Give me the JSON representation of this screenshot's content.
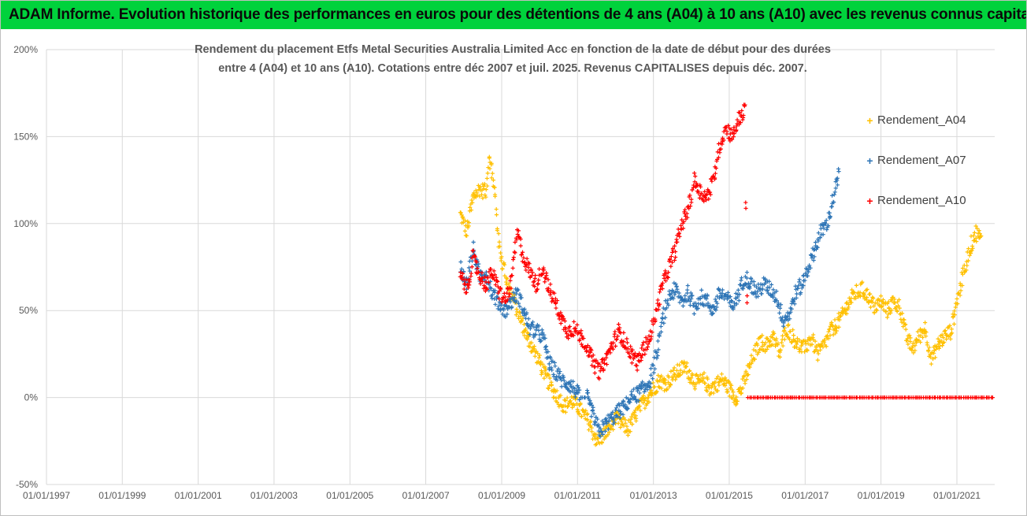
{
  "header": {
    "title": "ADAM Informe. Evolution historique des performances en euros pour des détentions de 4 ans (A04) à 10 ans (A10) avec les revenus connus capitalisés"
  },
  "chart_data": {
    "type": "scatter",
    "title_line1": "Rendement du placement Etfs Metal Securities Australia Limited Acc en fonction de la date de début pour des durées",
    "title_line2": "entre 4 (A04) et 10 ans (A10). Cotations entre déc 2007 et juil. 2025. Revenus CAPITALISES depuis déc. 2007.",
    "xlim": [
      "1997-01-01",
      "2021-12-31"
    ],
    "ylim": [
      -50,
      200
    ],
    "y_ticks": [
      -50,
      0,
      50,
      100,
      150,
      200
    ],
    "y_tick_labels": [
      "-50%",
      "0%",
      "50%",
      "100%",
      "150%",
      "200%"
    ],
    "x_ticks": [
      "1997-01-01",
      "1999-01-01",
      "2001-01-01",
      "2003-01-01",
      "2005-01-01",
      "2007-01-01",
      "2009-01-01",
      "2011-01-01",
      "2013-01-01",
      "2015-01-01",
      "2017-01-01",
      "2019-01-01",
      "2021-01-01"
    ],
    "x_tick_labels": [
      "01/01/1997",
      "01/01/1999",
      "01/01/2001",
      "01/01/2003",
      "01/01/2005",
      "01/01/2007",
      "01/01/2009",
      "01/01/2011",
      "01/01/2013",
      "01/01/2015",
      "01/01/2017",
      "01/01/2019",
      "01/01/2021"
    ],
    "grid": true,
    "legend_position": "right",
    "series": [
      {
        "name": "Rendement_A04",
        "color": "#ffc000",
        "points": [
          [
            "2007-12-01",
            105
          ],
          [
            "2008-02-01",
            95
          ],
          [
            "2008-04-01",
            115
          ],
          [
            "2008-06-01",
            120
          ],
          [
            "2008-08-01",
            118
          ],
          [
            "2008-09-01",
            140
          ],
          [
            "2008-10-01",
            128
          ],
          [
            "2008-11-01",
            115
          ],
          [
            "2008-12-01",
            90
          ],
          [
            "2009-01-01",
            80
          ],
          [
            "2009-03-01",
            65
          ],
          [
            "2009-05-01",
            55
          ],
          [
            "2009-07-01",
            45
          ],
          [
            "2009-09-01",
            35
          ],
          [
            "2009-11-01",
            28
          ],
          [
            "2010-01-01",
            20
          ],
          [
            "2010-03-01",
            12
          ],
          [
            "2010-05-01",
            5
          ],
          [
            "2010-07-01",
            0
          ],
          [
            "2010-09-01",
            -5
          ],
          [
            "2010-11-01",
            -2
          ],
          [
            "2011-01-01",
            -5
          ],
          [
            "2011-03-01",
            -10
          ],
          [
            "2011-05-01",
            -15
          ],
          [
            "2011-07-01",
            -25
          ],
          [
            "2011-09-01",
            -22
          ],
          [
            "2011-11-01",
            -18
          ],
          [
            "2012-01-01",
            -12
          ],
          [
            "2012-03-01",
            -15
          ],
          [
            "2012-05-01",
            -18
          ],
          [
            "2012-07-01",
            -12
          ],
          [
            "2012-09-01",
            -5
          ],
          [
            "2012-11-01",
            0
          ],
          [
            "2013-01-01",
            5
          ],
          [
            "2013-03-01",
            10
          ],
          [
            "2013-05-01",
            8
          ],
          [
            "2013-07-01",
            12
          ],
          [
            "2013-09-01",
            15
          ],
          [
            "2013-11-01",
            18
          ],
          [
            "2014-01-01",
            12
          ],
          [
            "2014-03-01",
            8
          ],
          [
            "2014-05-01",
            10
          ],
          [
            "2014-07-01",
            5
          ],
          [
            "2014-09-01",
            8
          ],
          [
            "2014-11-01",
            10
          ],
          [
            "2015-01-01",
            5
          ],
          [
            "2015-03-01",
            0
          ],
          [
            "2015-05-01",
            5
          ],
          [
            "2015-07-01",
            15
          ],
          [
            "2015-09-01",
            25
          ],
          [
            "2015-11-01",
            32
          ],
          [
            "2016-01-01",
            30
          ],
          [
            "2016-03-01",
            35
          ],
          [
            "2016-05-01",
            25
          ],
          [
            "2016-07-01",
            40
          ],
          [
            "2016-09-01",
            35
          ],
          [
            "2016-11-01",
            30
          ],
          [
            "2017-01-01",
            28
          ],
          [
            "2017-03-01",
            35
          ],
          [
            "2017-05-01",
            25
          ],
          [
            "2017-07-01",
            30
          ],
          [
            "2017-09-01",
            38
          ],
          [
            "2017-11-01",
            42
          ],
          [
            "2018-01-01",
            48
          ],
          [
            "2018-03-01",
            55
          ],
          [
            "2018-05-01",
            60
          ],
          [
            "2018-07-01",
            62
          ],
          [
            "2018-09-01",
            58
          ],
          [
            "2018-11-01",
            52
          ],
          [
            "2019-01-01",
            55
          ],
          [
            "2019-03-01",
            50
          ],
          [
            "2019-05-01",
            55
          ],
          [
            "2019-07-01",
            52
          ],
          [
            "2019-09-01",
            35
          ],
          [
            "2019-11-01",
            28
          ],
          [
            "2020-01-01",
            35
          ],
          [
            "2020-03-01",
            40
          ],
          [
            "2020-05-01",
            22
          ],
          [
            "2020-07-01",
            30
          ],
          [
            "2020-09-01",
            35
          ],
          [
            "2020-11-01",
            38
          ],
          [
            "2021-01-01",
            55
          ],
          [
            "2021-03-01",
            70
          ],
          [
            "2021-05-01",
            85
          ],
          [
            "2021-07-01",
            95
          ],
          [
            "2021-09-01",
            90
          ]
        ]
      },
      {
        "name": "Rendement_A07",
        "color": "#2e75b6",
        "points": [
          [
            "2007-12-01",
            75
          ],
          [
            "2008-02-01",
            65
          ],
          [
            "2008-04-01",
            85
          ],
          [
            "2008-06-01",
            70
          ],
          [
            "2008-08-01",
            72
          ],
          [
            "2008-10-01",
            60
          ],
          [
            "2008-12-01",
            55
          ],
          [
            "2009-02-01",
            50
          ],
          [
            "2009-04-01",
            55
          ],
          [
            "2009-06-01",
            60
          ],
          [
            "2009-08-01",
            50
          ],
          [
            "2009-10-01",
            40
          ],
          [
            "2009-12-01",
            38
          ],
          [
            "2010-02-01",
            35
          ],
          [
            "2010-04-01",
            20
          ],
          [
            "2010-06-01",
            15
          ],
          [
            "2010-08-01",
            10
          ],
          [
            "2010-10-01",
            8
          ],
          [
            "2010-12-01",
            5
          ],
          [
            "2011-02-01",
            0
          ],
          [
            "2011-04-01",
            0
          ],
          [
            "2011-06-01",
            -10
          ],
          [
            "2011-08-01",
            -20
          ],
          [
            "2011-10-01",
            -15
          ],
          [
            "2011-12-01",
            -12
          ],
          [
            "2012-02-01",
            -8
          ],
          [
            "2012-04-01",
            -5
          ],
          [
            "2012-06-01",
            0
          ],
          [
            "2012-08-01",
            2
          ],
          [
            "2012-10-01",
            5
          ],
          [
            "2012-12-01",
            10
          ],
          [
            "2013-02-01",
            25
          ],
          [
            "2013-04-01",
            45
          ],
          [
            "2013-06-01",
            58
          ],
          [
            "2013-08-01",
            62
          ],
          [
            "2013-10-01",
            55
          ],
          [
            "2013-12-01",
            60
          ],
          [
            "2014-02-01",
            52
          ],
          [
            "2014-04-01",
            58
          ],
          [
            "2014-06-01",
            55
          ],
          [
            "2014-08-01",
            50
          ],
          [
            "2014-10-01",
            60
          ],
          [
            "2014-12-01",
            58
          ],
          [
            "2015-02-01",
            52
          ],
          [
            "2015-04-01",
            60
          ],
          [
            "2015-06-01",
            70
          ],
          [
            "2015-08-01",
            65
          ],
          [
            "2015-10-01",
            60
          ],
          [
            "2015-12-01",
            65
          ],
          [
            "2016-02-01",
            62
          ],
          [
            "2016-04-01",
            58
          ],
          [
            "2016-06-01",
            45
          ],
          [
            "2016-08-01",
            48
          ],
          [
            "2016-10-01",
            60
          ],
          [
            "2016-12-01",
            65
          ],
          [
            "2017-02-01",
            75
          ],
          [
            "2017-04-01",
            85
          ],
          [
            "2017-06-01",
            95
          ],
          [
            "2017-08-01",
            100
          ],
          [
            "2017-10-01",
            115
          ],
          [
            "2017-12-01",
            130
          ]
        ]
      },
      {
        "name": "Rendement_A10",
        "color": "#ff0000",
        "points": [
          [
            "2007-12-01",
            70
          ],
          [
            "2008-02-01",
            62
          ],
          [
            "2008-04-01",
            80
          ],
          [
            "2008-06-01",
            70
          ],
          [
            "2008-08-01",
            65
          ],
          [
            "2008-10-01",
            72
          ],
          [
            "2008-12-01",
            62
          ],
          [
            "2009-02-01",
            55
          ],
          [
            "2009-04-01",
            65
          ],
          [
            "2009-06-01",
            95
          ],
          [
            "2009-08-01",
            80
          ],
          [
            "2009-10-01",
            72
          ],
          [
            "2009-12-01",
            65
          ],
          [
            "2010-02-01",
            75
          ],
          [
            "2010-04-01",
            62
          ],
          [
            "2010-06-01",
            55
          ],
          [
            "2010-08-01",
            45
          ],
          [
            "2010-10-01",
            38
          ],
          [
            "2010-12-01",
            40
          ],
          [
            "2011-02-01",
            35
          ],
          [
            "2011-04-01",
            30
          ],
          [
            "2011-06-01",
            20
          ],
          [
            "2011-08-01",
            15
          ],
          [
            "2011-10-01",
            22
          ],
          [
            "2011-12-01",
            30
          ],
          [
            "2012-02-01",
            38
          ],
          [
            "2012-04-01",
            32
          ],
          [
            "2012-06-01",
            25
          ],
          [
            "2012-08-01",
            20
          ],
          [
            "2012-10-01",
            28
          ],
          [
            "2012-12-01",
            35
          ],
          [
            "2013-02-01",
            50
          ],
          [
            "2013-04-01",
            65
          ],
          [
            "2013-06-01",
            75
          ],
          [
            "2013-08-01",
            85
          ],
          [
            "2013-10-01",
            100
          ],
          [
            "2013-12-01",
            108
          ],
          [
            "2014-02-01",
            125
          ],
          [
            "2014-04-01",
            118
          ],
          [
            "2014-06-01",
            115
          ],
          [
            "2014-08-01",
            125
          ],
          [
            "2014-10-01",
            145
          ],
          [
            "2014-12-01",
            155
          ],
          [
            "2015-02-01",
            150
          ],
          [
            "2015-04-01",
            160
          ],
          [
            "2015-06-01",
            165
          ],
          [
            "2015-07-01",
            0
          ],
          [
            "2021-12-31",
            0
          ]
        ]
      }
    ]
  }
}
